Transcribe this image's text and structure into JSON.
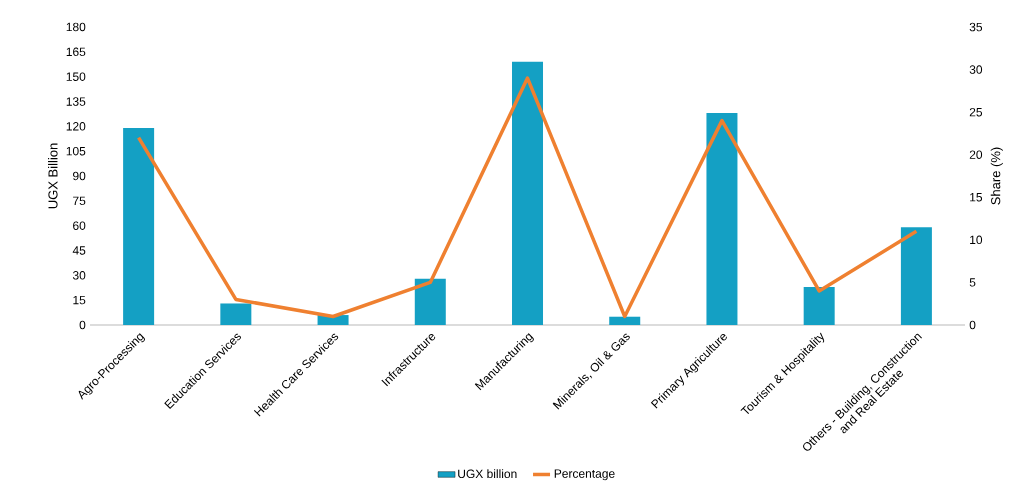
{
  "chart_data": {
    "type": "bar",
    "ylabel": "UGX Billion",
    "y2label": "Share  (%)",
    "categories": [
      "Agro-Processing",
      "Education Services",
      "Health Care Services",
      "Infrastructure",
      "Manufacturing",
      "Minerals, Oil & Gas",
      "Primary Agriculture",
      "Tourism & Hospitality",
      "Others - Building, Construction and Real Estate"
    ],
    "series": [
      {
        "name": "UGX billion",
        "color": "#14a0c4",
        "values": [
          119,
          13,
          6,
          28,
          159,
          5,
          128,
          23,
          59
        ]
      },
      {
        "name": "Percentage",
        "type": "line",
        "axis": "y2",
        "color": "#ef8030",
        "values": [
          22,
          3,
          1,
          5,
          29,
          1,
          24,
          4,
          11
        ]
      }
    ],
    "ylim": [
      0,
      180
    ],
    "yticks": [
      0,
      15,
      30,
      45,
      60,
      75,
      90,
      105,
      120,
      135,
      150,
      165,
      180
    ],
    "y2lim": [
      0,
      35
    ],
    "y2ticks": [
      0,
      5,
      10,
      15,
      20,
      25,
      30,
      35
    ],
    "grid": false,
    "legend": "bottom",
    "marker": "none"
  }
}
